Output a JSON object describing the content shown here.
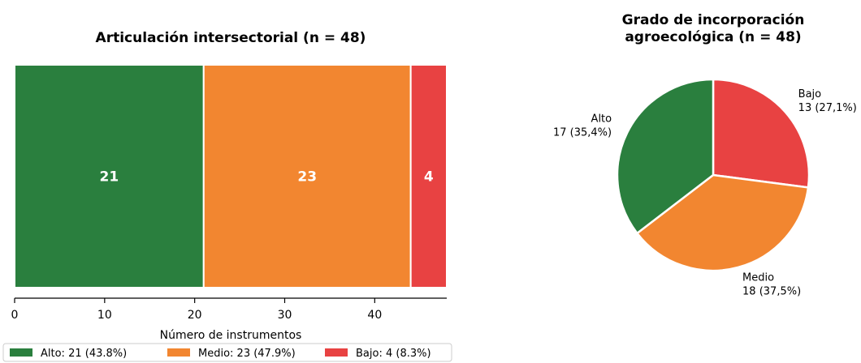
{
  "chart_data": [
    {
      "type": "bar",
      "orientation": "horizontal-stacked",
      "title": "Articulación intersectorial (n = 48)",
      "xlabel": "Número de instrumentos",
      "ylabel": "",
      "xlim": [
        0,
        48
      ],
      "xticks": [
        "0",
        "10",
        "20",
        "30",
        "40"
      ],
      "grid": false,
      "legend_position": "bottom",
      "series": [
        {
          "name": "Alto",
          "value": 21,
          "bar_label": "21",
          "legend": "Alto: 21 (43.8%)",
          "color": "#2a7f3e"
        },
        {
          "name": "Medio",
          "value": 23,
          "bar_label": "23",
          "legend": "Medio: 23 (47.9%)",
          "color": "#f28630"
        },
        {
          "name": "Bajo",
          "value": 4,
          "bar_label": "4",
          "legend": "Bajo: 4 (8.3%)",
          "color": "#e84242"
        }
      ]
    },
    {
      "type": "pie",
      "title_lines": [
        "Grado de incorporación",
        "agroecológica (n = 48)"
      ],
      "slices": [
        {
          "name": "Bajo",
          "value": 13,
          "label_lines": [
            "Bajo",
            "13 (27,1%)"
          ],
          "color": "#e84242"
        },
        {
          "name": "Medio",
          "value": 18,
          "label_lines": [
            "Medio",
            "18 (37,5%)"
          ],
          "color": "#f28630"
        },
        {
          "name": "Alto",
          "value": 17,
          "label_lines": [
            "Alto",
            "17 (35,4%)"
          ],
          "color": "#2a7f3e"
        }
      ]
    }
  ]
}
